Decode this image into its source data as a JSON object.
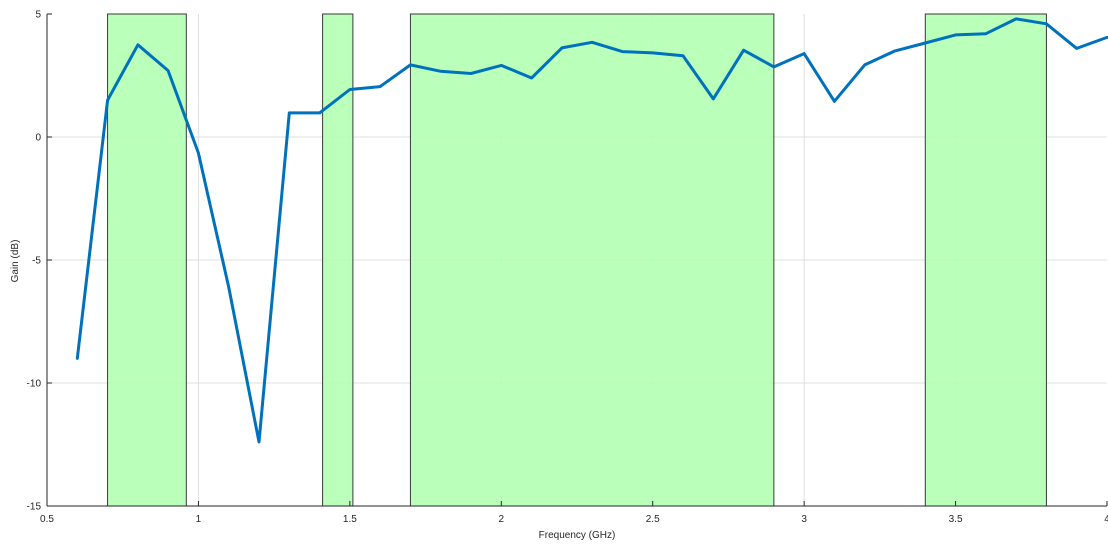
{
  "chart_data": {
    "type": "line",
    "title": "",
    "xlabel": "Frequency (GHz)",
    "ylabel": "Gain (dB)",
    "xlim": [
      0.5,
      4
    ],
    "ylim": [
      -15,
      5
    ],
    "xticks": [
      0.5,
      1,
      1.5,
      2,
      2.5,
      3,
      3.5,
      4
    ],
    "xtick_labels": [
      "0.5",
      "1",
      "1.5",
      "2",
      "2.5",
      "3",
      "3.5",
      "4"
    ],
    "yticks": [
      -15,
      -10,
      -5,
      0,
      5
    ],
    "ytick_labels": [
      "-15",
      "-10",
      "-5",
      "0",
      "5"
    ],
    "grid": true,
    "line_color": "#0072BD",
    "band_color": "#b3ffb3",
    "highlight_bands": [
      {
        "x0": 0.7,
        "x1": 0.96
      },
      {
        "x0": 1.41,
        "x1": 1.51
      },
      {
        "x0": 1.7,
        "x1": 2.9
      },
      {
        "x0": 3.4,
        "x1": 3.8
      }
    ],
    "series": [
      {
        "x": [
          0.6,
          0.7,
          0.8,
          0.9,
          1.0,
          1.1,
          1.2,
          1.3,
          1.4,
          1.5,
          1.6,
          1.7,
          1.8,
          1.9,
          2.0,
          2.1,
          2.2,
          2.3,
          2.4,
          2.5,
          2.6,
          2.7,
          2.8,
          2.9,
          3.0,
          3.1,
          3.2,
          3.3,
          3.4,
          3.5,
          3.6,
          3.7,
          3.8,
          3.9,
          4.0
        ],
        "y": [
          -9.0,
          1.5,
          3.75,
          2.7,
          -0.65,
          -6.1,
          -12.4,
          0.98,
          0.98,
          1.93,
          2.05,
          2.93,
          2.67,
          2.58,
          2.91,
          2.4,
          3.62,
          3.85,
          3.47,
          3.42,
          3.3,
          1.55,
          3.53,
          2.85,
          3.39,
          1.45,
          2.93,
          3.5,
          3.82,
          4.15,
          4.2,
          4.8,
          4.6,
          3.6,
          4.05
        ]
      }
    ]
  }
}
